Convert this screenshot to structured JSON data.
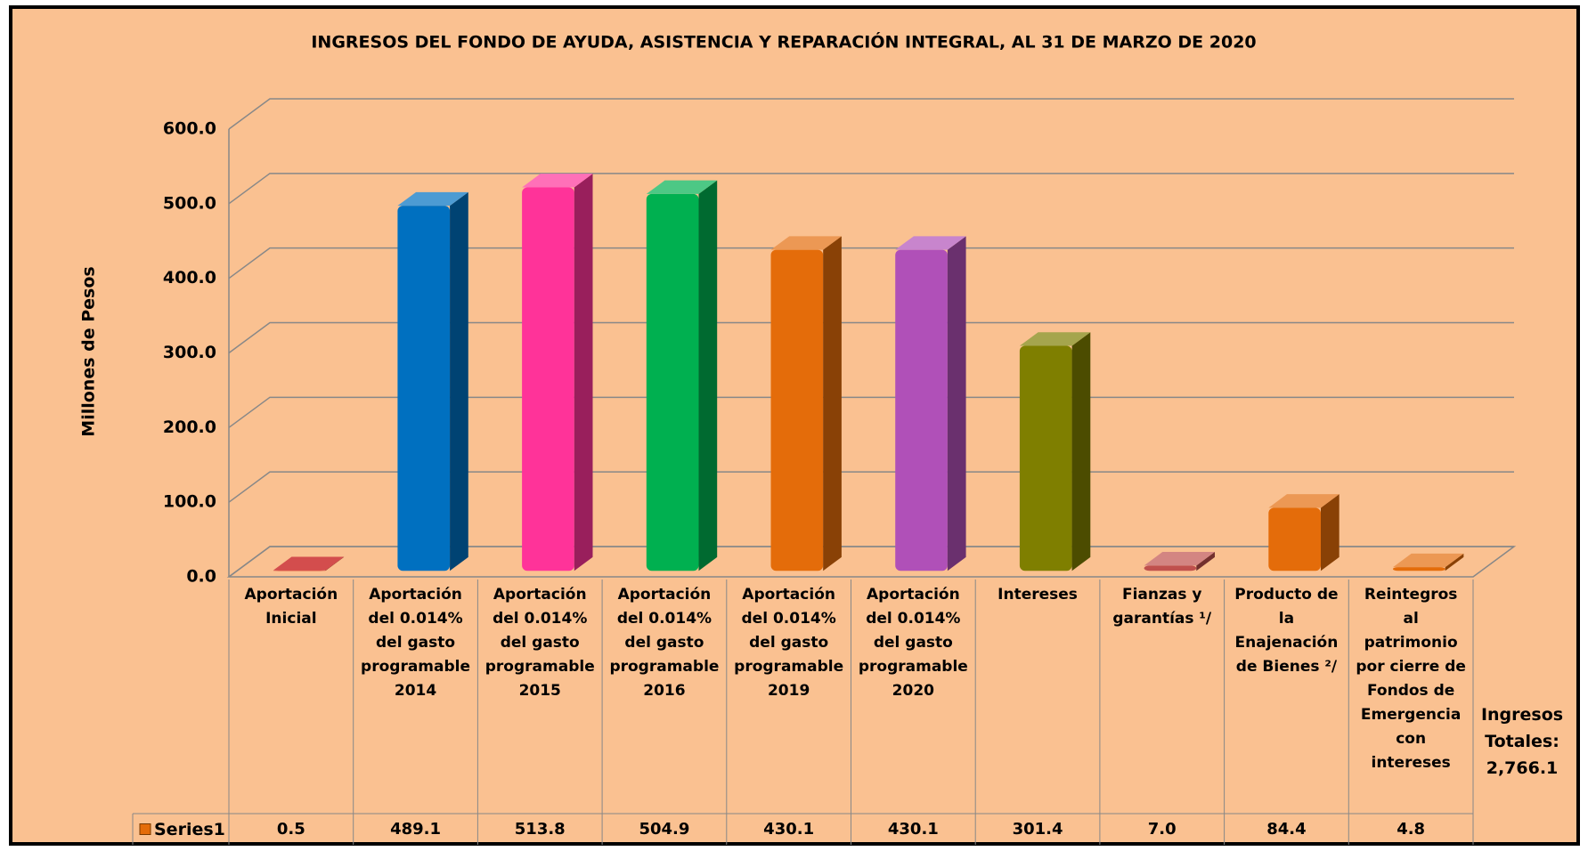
{
  "chart_data": {
    "type": "bar3d",
    "title": "INGRESOS DEL FONDO DE AYUDA, ASISTENCIA Y REPARACIÓN INTEGRAL, AL 31 DE MARZO DE 2020",
    "y_label": "Millones de Pesos",
    "categories": [
      "Aportación Inicial",
      "Aportación del 0.014% del gasto programable 2014",
      "Aportación del 0.014% del gasto programable 2015",
      "Aportación del 0.014% del gasto programable 2016",
      "Aportación del 0.014% del gasto programable 2019",
      "Aportación del 0.014% del gasto programable 2020",
      "Intereses",
      "Fianzas y garantías ¹/",
      "Producto de la Enajenación de Bienes ²/",
      "Reintegros al patrimonio por cierre de Fondos de Emergencia con intereses"
    ],
    "series": [
      {
        "name": "Series1",
        "color": "#e46c0a",
        "values": [
          0.5,
          489.1,
          513.8,
          504.9,
          430.1,
          430.1,
          301.4,
          7.0,
          84.4,
          4.8
        ],
        "value_labels": [
          "0.5",
          "489.1",
          "513.8",
          "504.9",
          "430.1",
          "430.1",
          "301.4",
          "7.0",
          "84.4",
          "4.8"
        ],
        "colors": [
          "#c00000",
          "#0070c0",
          "#ff3399",
          "#00b050",
          "#e46c0a",
          "#b050b8",
          "#7f7f00",
          "#c0504d",
          "#e46c0a",
          "#e46c0a"
        ]
      }
    ],
    "ylim": [
      0,
      600
    ],
    "yticks": [
      {
        "value": 0,
        "label": "0.0"
      },
      {
        "value": 100,
        "label": "100.0"
      },
      {
        "value": 200,
        "label": "200.0"
      },
      {
        "value": 300,
        "label": "300.0"
      },
      {
        "value": 400,
        "label": "400.0"
      },
      {
        "value": 500,
        "label": "500.0"
      },
      {
        "value": 600,
        "label": "600.0"
      }
    ],
    "grid": true,
    "annotation": "Ingresos Totales: 2,766.1"
  }
}
